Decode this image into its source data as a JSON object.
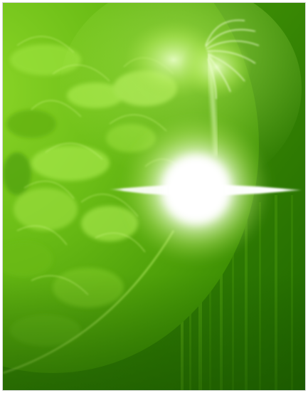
{
  "image": {
    "subject": "solar-flare-extreme-ultraviolet",
    "colors": {
      "border": "#d8d8d8",
      "deep_green": "#1f5e00",
      "mid_green": "#3f9a05",
      "bright_green": "#7fcf1f",
      "highlight": "#e9ffd0",
      "core": "#ffffff"
    }
  }
}
